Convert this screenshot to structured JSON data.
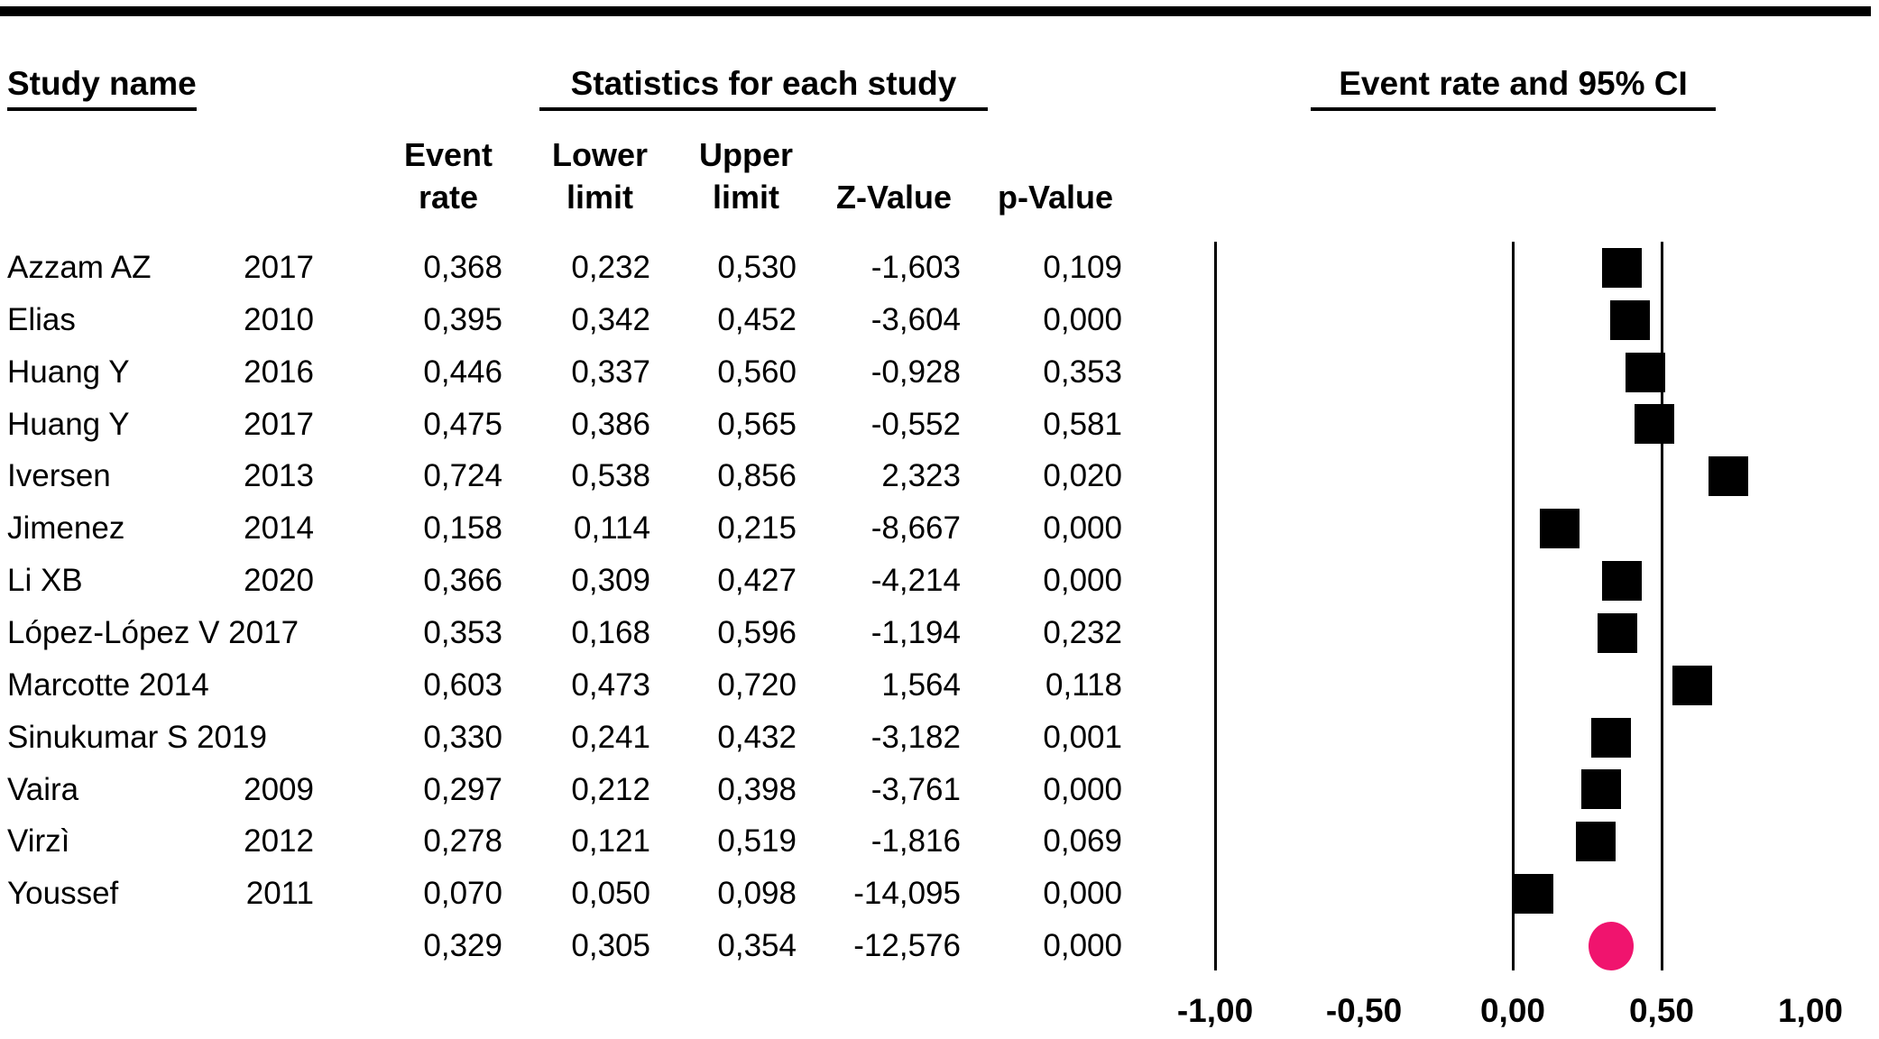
{
  "headers": {
    "study_name": "Study name",
    "statistics": "Statistics for each study",
    "event_rate_ci": "Event rate and 95% CI"
  },
  "column_headers": [
    {
      "line1": "Event",
      "line2": "rate"
    },
    {
      "line1": "Lower",
      "line2": "limit"
    },
    {
      "line1": "Upper",
      "line2": "limit"
    },
    {
      "line1": "",
      "line2": "Z-Value"
    },
    {
      "line1": "",
      "line2": "p-Value"
    }
  ],
  "table": {
    "rows": [
      {
        "name": "Azzam AZ",
        "year": "2017",
        "rate": "0,368",
        "lower": "0,232",
        "upper": "0,530",
        "z": "-1,603",
        "p": "0,109"
      },
      {
        "name": "Elias",
        "year": "2010",
        "rate": "0,395",
        "lower": "0,342",
        "upper": "0,452",
        "z": "-3,604",
        "p": "0,000"
      },
      {
        "name": "Huang Y",
        "year": "2016",
        "rate": "0,446",
        "lower": "0,337",
        "upper": "0,560",
        "z": "-0,928",
        "p": "0,353"
      },
      {
        "name": "Huang Y",
        "year": "2017",
        "rate": "0,475",
        "lower": "0,386",
        "upper": "0,565",
        "z": "-0,552",
        "p": "0,581"
      },
      {
        "name": "Iversen",
        "year": "2013",
        "rate": "0,724",
        "lower": "0,538",
        "upper": "0,856",
        "z": "2,323",
        "p": "0,020"
      },
      {
        "name": "Jimenez",
        "year": "2014",
        "rate": "0,158",
        "lower": "0,114",
        "upper": "0,215",
        "z": "-8,667",
        "p": "0,000"
      },
      {
        "name": "Li XB",
        "year": "2020",
        "rate": "0,366",
        "lower": "0,309",
        "upper": "0,427",
        "z": "-4,214",
        "p": "0,000"
      },
      {
        "name": "López-López V 2017",
        "year": "",
        "rate": "0,353",
        "lower": "0,168",
        "upper": "0,596",
        "z": "-1,194",
        "p": "0,232"
      },
      {
        "name": "Marcotte 2014",
        "year": "",
        "rate": "0,603",
        "lower": "0,473",
        "upper": "0,720",
        "z": "1,564",
        "p": "0,118"
      },
      {
        "name": "Sinukumar S 2019",
        "year": "",
        "rate": "0,330",
        "lower": "0,241",
        "upper": "0,432",
        "z": "-3,182",
        "p": "0,001"
      },
      {
        "name": "Vaira",
        "year": "2009",
        "rate": "0,297",
        "lower": "0,212",
        "upper": "0,398",
        "z": "-3,761",
        "p": "0,000"
      },
      {
        "name": "Virzì",
        "year": "2012",
        "rate": "0,278",
        "lower": "0,121",
        "upper": "0,519",
        "z": "-1,816",
        "p": "0,069"
      },
      {
        "name": "Youssef",
        "year": "2011",
        "rate": "0,070",
        "lower": "0,050",
        "upper": "0,098",
        "z": "-14,095",
        "p": "0,000"
      },
      {
        "name": "",
        "year": "",
        "rate": "0,329",
        "lower": "0,305",
        "upper": "0,354",
        "z": "-12,576",
        "p": "0,000"
      }
    ]
  },
  "chart_data": {
    "type": "scatter",
    "subtype": "forest-plot",
    "title": "Event rate and 95% CI",
    "xlim": [
      -1.0,
      1.0
    ],
    "grid": false,
    "studies": [
      {
        "name": "Azzam AZ 2017",
        "event_rate": 0.368,
        "lower": 0.232,
        "upper": 0.53
      },
      {
        "name": "Elias 2010",
        "event_rate": 0.395,
        "lower": 0.342,
        "upper": 0.452
      },
      {
        "name": "Huang Y 2016",
        "event_rate": 0.446,
        "lower": 0.337,
        "upper": 0.56
      },
      {
        "name": "Huang Y 2017",
        "event_rate": 0.475,
        "lower": 0.386,
        "upper": 0.565
      },
      {
        "name": "Iversen 2013",
        "event_rate": 0.724,
        "lower": 0.538,
        "upper": 0.856
      },
      {
        "name": "Jimenez 2014",
        "event_rate": 0.158,
        "lower": 0.114,
        "upper": 0.215
      },
      {
        "name": "Li XB 2020",
        "event_rate": 0.366,
        "lower": 0.309,
        "upper": 0.427
      },
      {
        "name": "López-López V 2017",
        "event_rate": 0.353,
        "lower": 0.168,
        "upper": 0.596
      },
      {
        "name": "Marcotte 2014",
        "event_rate": 0.603,
        "lower": 0.473,
        "upper": 0.72
      },
      {
        "name": "Sinukumar S 2019",
        "event_rate": 0.33,
        "lower": 0.241,
        "upper": 0.432
      },
      {
        "name": "Vaira 2009",
        "event_rate": 0.297,
        "lower": 0.212,
        "upper": 0.398
      },
      {
        "name": "Virzì 2012",
        "event_rate": 0.278,
        "lower": 0.121,
        "upper": 0.519
      },
      {
        "name": "Youssef 2011",
        "event_rate": 0.07,
        "lower": 0.05,
        "upper": 0.098
      }
    ],
    "summary": {
      "event_rate": 0.329,
      "lower": 0.305,
      "upper": 0.354
    },
    "axis": {
      "ticks": [
        {
          "label": "-1,00",
          "value": -1.0
        },
        {
          "label": "-0,50",
          "value": -0.5
        },
        {
          "label": "0,00",
          "value": 0.0
        },
        {
          "label": "0,50",
          "value": 0.5
        },
        {
          "label": "1,00",
          "value": 1.0
        }
      ],
      "line_values": [
        -1.0,
        0.0,
        0.5
      ]
    },
    "colors": {
      "marker": "#000000",
      "summary": "#f0146e",
      "line": "#000000"
    }
  }
}
